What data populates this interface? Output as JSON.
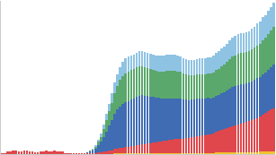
{
  "chart_data": {
    "type": "bar",
    "stacked": true,
    "grid": false,
    "tick_labels": false,
    "x": [
      0,
      1,
      2,
      3,
      4,
      5,
      6,
      7,
      8,
      9,
      10,
      11,
      12,
      13,
      14,
      15,
      16,
      17,
      18,
      19,
      20,
      21,
      22,
      23,
      24,
      25,
      26,
      27,
      28,
      29,
      30,
      31,
      32,
      33,
      34,
      35,
      36,
      37,
      38,
      39,
      40,
      41,
      42,
      43,
      44,
      45,
      46,
      47,
      48,
      49,
      50,
      51,
      52,
      53,
      54,
      55,
      56,
      57,
      58,
      59,
      60,
      61,
      62,
      63,
      64,
      65,
      66,
      67,
      68,
      69,
      70,
      71,
      72,
      73,
      74,
      75,
      76,
      77,
      78,
      79,
      80,
      81,
      82,
      83,
      84,
      85,
      86,
      87,
      88,
      89,
      90,
      91,
      92,
      93,
      94,
      95,
      96,
      97,
      98,
      99
    ],
    "xlim": [
      -0.5,
      99.5
    ],
    "ylim": [
      0,
      176
    ],
    "series": [
      {
        "color": "#f2c12e",
        "values": [
          0,
          0,
          0,
          0,
          0,
          0,
          0,
          0,
          0,
          0,
          0,
          0,
          0,
          0,
          0,
          0,
          0,
          0,
          0,
          0,
          0,
          0,
          0,
          0,
          0,
          0,
          0,
          0,
          0,
          0,
          0,
          0,
          0,
          0,
          0,
          0,
          0,
          0,
          0,
          0,
          0,
          1,
          1,
          1,
          1,
          1,
          1,
          1,
          1,
          1,
          1,
          1,
          1,
          1,
          1,
          1,
          1,
          1,
          1,
          1,
          1,
          1,
          1,
          1,
          1,
          1,
          1,
          1,
          1,
          1,
          1,
          1,
          1,
          1,
          1,
          1,
          1,
          1,
          2,
          2,
          2,
          2,
          2,
          2,
          2,
          2,
          2,
          2,
          2,
          2,
          2,
          2,
          2,
          2,
          3,
          3,
          3,
          3,
          3,
          3
        ]
      },
      {
        "color": "#e0474c",
        "values": [
          1,
          1,
          3,
          3,
          4,
          4,
          3,
          3,
          4,
          4,
          3,
          3,
          2,
          2,
          3,
          3,
          4,
          3,
          3,
          4,
          3,
          3,
          3,
          1,
          1,
          1,
          1,
          1,
          1,
          1,
          1,
          1,
          1,
          1,
          1,
          2,
          2,
          3,
          3,
          4,
          4,
          5,
          5,
          6,
          6,
          7,
          7,
          8,
          8,
          9,
          9,
          10,
          10,
          11,
          11,
          12,
          12,
          13,
          13,
          14,
          14,
          15,
          15,
          16,
          16,
          17,
          17,
          18,
          18,
          19,
          19,
          20,
          20,
          21,
          21,
          22,
          22,
          23,
          24,
          25,
          26,
          27,
          28,
          29,
          30,
          31,
          32,
          33,
          34,
          35,
          36,
          37,
          38,
          39,
          40,
          42,
          44,
          46,
          48,
          50
        ]
      },
      {
        "color": "#3f6cb3",
        "values": [
          0,
          0,
          0,
          0,
          0,
          0,
          0,
          0,
          0,
          0,
          0,
          0,
          0,
          0,
          0,
          0,
          0,
          0,
          0,
          0,
          0,
          0,
          0,
          0,
          0,
          0,
          0,
          0,
          0,
          0,
          0,
          1,
          2,
          3,
          5,
          8,
          12,
          17,
          23,
          29,
          35,
          40,
          45,
          48,
          51,
          52,
          53,
          54,
          55,
          56,
          57,
          57,
          56,
          55,
          54,
          53,
          52,
          51,
          50,
          49,
          49,
          48,
          48,
          47,
          47,
          46,
          45,
          44,
          43,
          43,
          43,
          43,
          43,
          42,
          42,
          42,
          41,
          41,
          41,
          41,
          42,
          42,
          43,
          44,
          45,
          45,
          45,
          45,
          44,
          44,
          44,
          44,
          45,
          46,
          46,
          47,
          47,
          48,
          49,
          50
        ]
      },
      {
        "color": "#5aa86b",
        "values": [
          0,
          0,
          0,
          0,
          0,
          0,
          0,
          0,
          0,
          0,
          0,
          0,
          0,
          0,
          0,
          0,
          0,
          0,
          0,
          0,
          0,
          0,
          0,
          0,
          0,
          0,
          0,
          0,
          0,
          0,
          0,
          0,
          1,
          1,
          2,
          4,
          6,
          9,
          13,
          16,
          20,
          24,
          27,
          30,
          32,
          33,
          34,
          34,
          34,
          34,
          34,
          33,
          33,
          32,
          32,
          31,
          31,
          30,
          31,
          31,
          32,
          32,
          32,
          32,
          31,
          31,
          30,
          29,
          29,
          28,
          28,
          28,
          28,
          28,
          28,
          28,
          29,
          29,
          30,
          30,
          31,
          32,
          33,
          34,
          35,
          35,
          36,
          36,
          36,
          36,
          36,
          37,
          37,
          38,
          38,
          39,
          40,
          41,
          42,
          43
        ]
      },
      {
        "color": "#8fc3e3",
        "values": [
          0,
          0,
          0,
          0,
          0,
          0,
          0,
          0,
          0,
          0,
          0,
          0,
          0,
          0,
          0,
          0,
          0,
          0,
          0,
          0,
          0,
          0,
          0,
          0,
          0,
          0,
          0,
          0,
          0,
          0,
          0,
          0,
          0,
          1,
          2,
          2,
          4,
          5,
          7,
          9,
          11,
          12,
          14,
          15,
          16,
          17,
          17,
          16,
          16,
          16,
          17,
          17,
          17,
          17,
          17,
          17,
          17,
          18,
          18,
          18,
          18,
          18,
          18,
          18,
          18,
          17,
          17,
          17,
          17,
          17,
          17,
          17,
          18,
          18,
          18,
          18,
          18,
          19,
          19,
          20,
          20,
          21,
          21,
          22,
          22,
          23,
          23,
          23,
          23,
          23,
          23,
          24,
          24,
          25,
          25,
          26,
          26,
          27,
          27,
          28
        ]
      }
    ]
  }
}
